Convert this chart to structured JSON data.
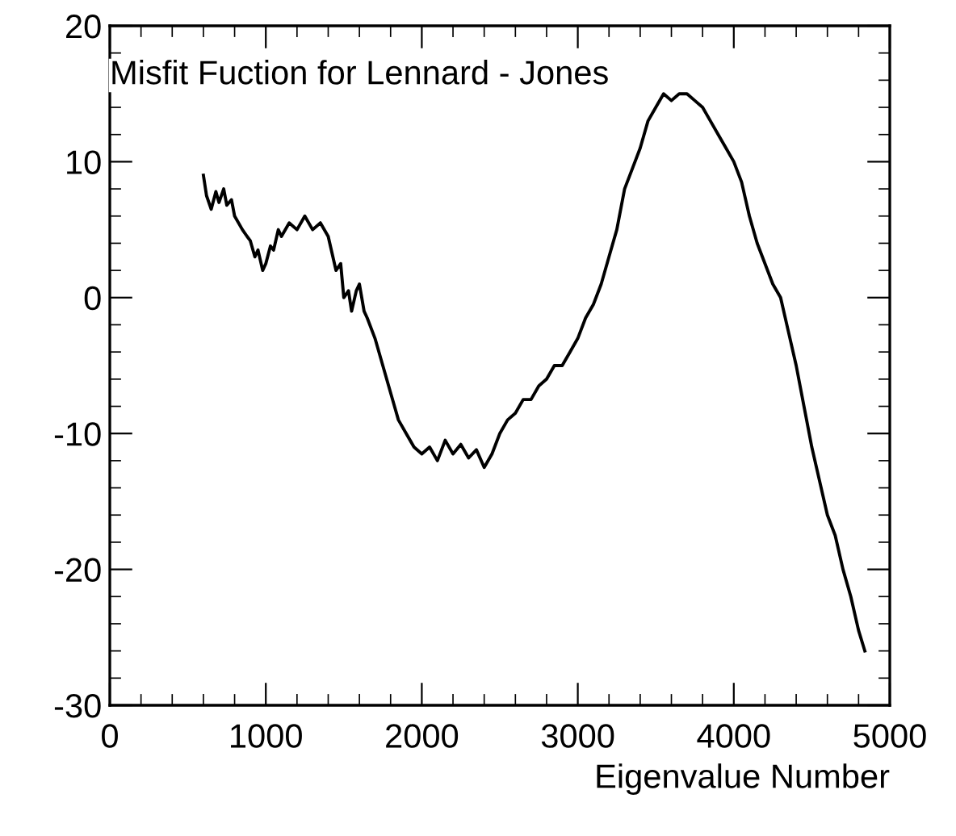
{
  "chart_data": {
    "type": "line",
    "title": "Misfit Fuction for Lennard - Jones",
    "xlabel": "Eigenvalue Number",
    "x": [
      600,
      620,
      650,
      680,
      700,
      730,
      750,
      780,
      800,
      850,
      880,
      900,
      930,
      950,
      980,
      1000,
      1030,
      1050,
      1080,
      1100,
      1150,
      1200,
      1250,
      1300,
      1350,
      1400,
      1430,
      1450,
      1480,
      1500,
      1530,
      1550,
      1580,
      1600,
      1630,
      1650,
      1700,
      1750,
      1800,
      1850,
      1900,
      1950,
      2000,
      2050,
      2100,
      2150,
      2200,
      2250,
      2300,
      2350,
      2400,
      2450,
      2500,
      2550,
      2600,
      2650,
      2700,
      2750,
      2800,
      2850,
      2900,
      2950,
      3000,
      3050,
      3100,
      3150,
      3200,
      3250,
      3300,
      3350,
      3400,
      3450,
      3500,
      3550,
      3600,
      3650,
      3700,
      3750,
      3800,
      3850,
      3900,
      3950,
      4000,
      4050,
      4100,
      4150,
      4200,
      4250,
      4300,
      4350,
      4400,
      4450,
      4500,
      4550,
      4600,
      4650,
      4700,
      4750,
      4800,
      4840
    ],
    "values": [
      9,
      7.5,
      6.5,
      7.8,
      7,
      8,
      6.8,
      7.2,
      6,
      5,
      4.5,
      4.2,
      3,
      3.5,
      2,
      2.5,
      3.8,
      3.5,
      5,
      4.5,
      5.5,
      5,
      6,
      5,
      5.5,
      4.5,
      3,
      2,
      2.5,
      0,
      0.5,
      -1,
      0.5,
      1,
      -1,
      -1.5,
      -3,
      -5,
      -7,
      -9,
      -10,
      -11,
      -11.5,
      -11,
      -12,
      -10.5,
      -11.5,
      -10.8,
      -11.8,
      -11.2,
      -12.5,
      -11.5,
      -10,
      -9,
      -8.5,
      -7.5,
      -7.5,
      -6.5,
      -6,
      -5,
      -5,
      -4,
      -3,
      -1.5,
      -0.5,
      1,
      3,
      5,
      8,
      9.5,
      11,
      13,
      14,
      15,
      14.5,
      15,
      15,
      14.5,
      14,
      13,
      12,
      11,
      10,
      8.5,
      6,
      4,
      2.5,
      1,
      0,
      -2.5,
      -5,
      -8,
      -11,
      -13.5,
      -16,
      -17.5,
      -20,
      -22,
      -24.5,
      -26
    ],
    "color": "#000000",
    "xlim": [
      0,
      5000
    ],
    "ylim": [
      -30,
      20
    ],
    "xticks": [
      0,
      1000,
      2000,
      3000,
      4000,
      5000
    ],
    "yticks": [
      -30,
      -20,
      -10,
      0,
      10,
      20
    ],
    "grid": false,
    "legend": false
  }
}
